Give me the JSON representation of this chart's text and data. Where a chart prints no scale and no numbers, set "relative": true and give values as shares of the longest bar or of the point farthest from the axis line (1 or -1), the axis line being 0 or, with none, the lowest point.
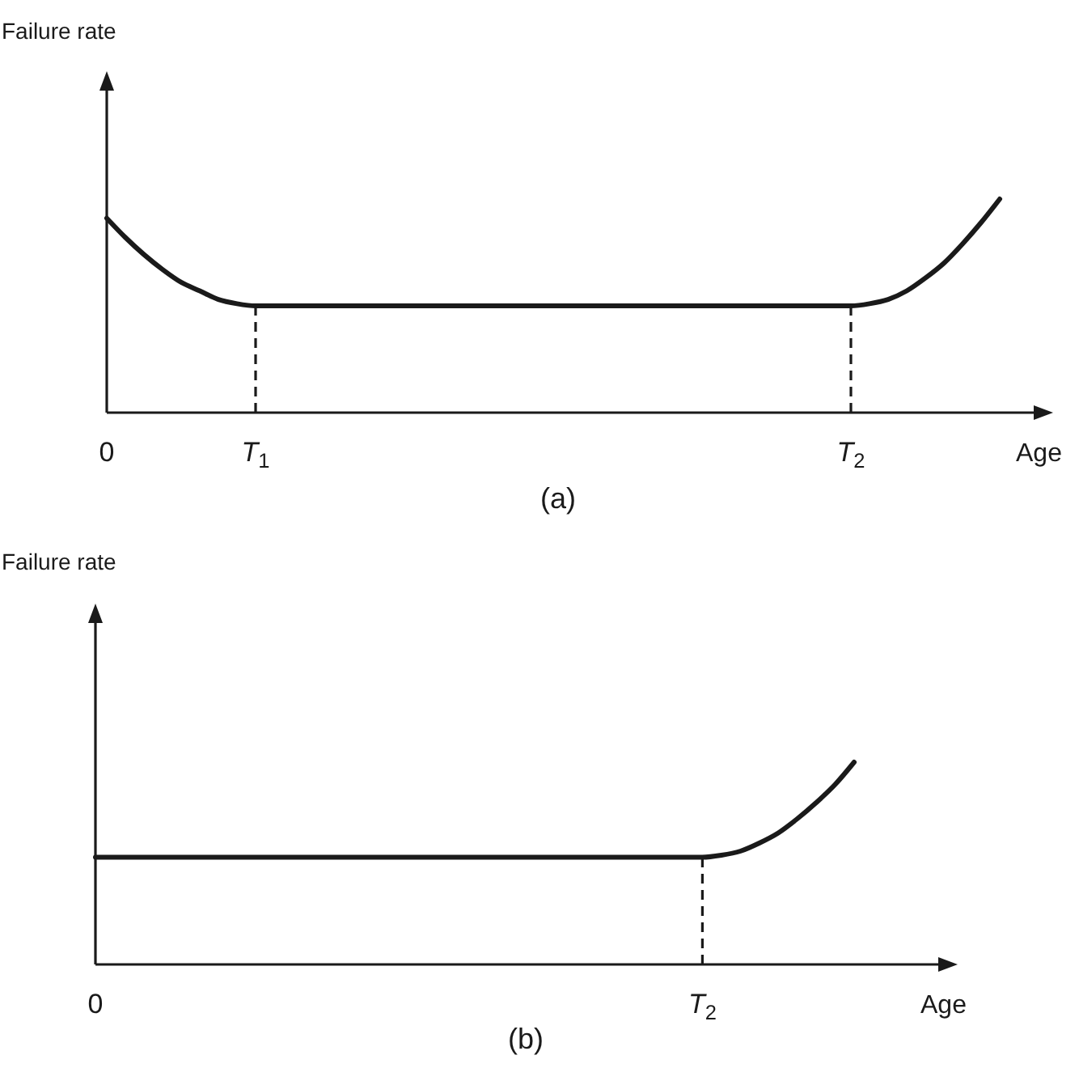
{
  "chart_data": [
    {
      "type": "line",
      "title": "(a)",
      "xlabel": "Age",
      "ylabel": "Failure rate",
      "relative": true,
      "categories": [
        "0",
        null,
        null,
        null,
        null,
        null,
        null,
        null,
        "T$_{1}$",
        null,
        null,
        null,
        null,
        null,
        null,
        null,
        null,
        null,
        null,
        null,
        null,
        null,
        null,
        null,
        null,
        null,
        null,
        null,
        null,
        null,
        null,
        null,
        null,
        null,
        null,
        null,
        null,
        null,
        null,
        null,
        "T$_{2}$",
        null,
        null,
        null,
        null,
        null,
        null,
        null,
        null
      ],
      "values": [
        0.91,
        0.82,
        0.74,
        0.67,
        0.61,
        0.57,
        0.53,
        0.51,
        0.5,
        0.5,
        0.5,
        0.5,
        0.5,
        0.5,
        0.5,
        0.5,
        0.5,
        0.5,
        0.5,
        0.5,
        0.5,
        0.5,
        0.5,
        0.5,
        0.5,
        0.5,
        0.5,
        0.5,
        0.5,
        0.5,
        0.5,
        0.5,
        0.5,
        0.5,
        0.5,
        0.5,
        0.5,
        0.5,
        0.5,
        0.5,
        0.5,
        0.51,
        0.53,
        0.57,
        0.63,
        0.7,
        0.79,
        0.89,
        1
      ],
      "color": "#1a1a1a",
      "ref_lines": [
        {
          "axis": "x",
          "value": "T$_{1}$",
          "line_style": "dashed"
        },
        {
          "axis": "x",
          "value": "T$_{2}$",
          "line_style": "dashed"
        }
      ]
    },
    {
      "type": "line",
      "title": "(b)",
      "xlabel": "Age",
      "ylabel": "Failure rate",
      "relative": true,
      "categories": [
        "0",
        null,
        null,
        null,
        null,
        null,
        null,
        null,
        null,
        null,
        null,
        null,
        null,
        null,
        null,
        null,
        null,
        null,
        null,
        null,
        null,
        null,
        null,
        null,
        null,
        null,
        null,
        null,
        null,
        null,
        null,
        null,
        "T$_{2}$",
        null,
        null,
        null,
        null,
        null,
        null,
        null,
        null
      ],
      "values": [
        0.53,
        0.53,
        0.53,
        0.53,
        0.53,
        0.53,
        0.53,
        0.53,
        0.53,
        0.53,
        0.53,
        0.53,
        0.53,
        0.53,
        0.53,
        0.53,
        0.53,
        0.53,
        0.53,
        0.53,
        0.53,
        0.53,
        0.53,
        0.53,
        0.53,
        0.53,
        0.53,
        0.53,
        0.53,
        0.53,
        0.53,
        0.53,
        0.53,
        0.54,
        0.56,
        0.6,
        0.65,
        0.72,
        0.8,
        0.89,
        1
      ],
      "color": "#1a1a1a",
      "ref_lines": [
        {
          "axis": "x",
          "value": "T$_{2}$",
          "line_style": "dashed"
        }
      ]
    }
  ]
}
